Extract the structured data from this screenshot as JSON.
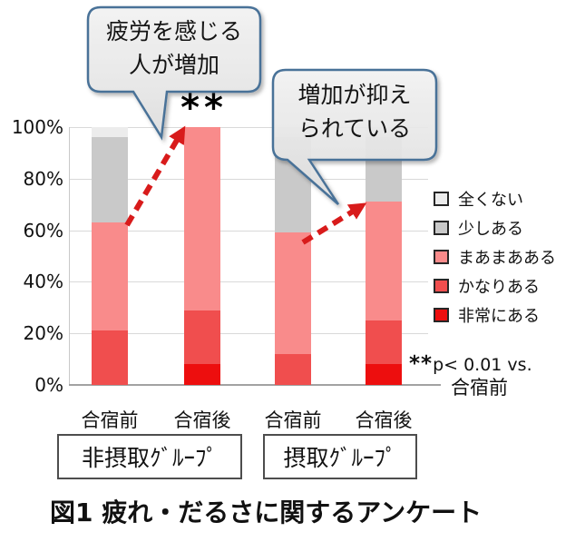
{
  "caption": "図1 疲れ・だるさに関するアンケート",
  "significance_marker": "**",
  "note": {
    "stars": "**",
    "text": "p< 0.01 vs.",
    "reference": "合宿前"
  },
  "callouts": [
    {
      "line1": "疲労を感じる",
      "line2": "人が増加"
    },
    {
      "line1": "増加が抑え",
      "line2": "られている"
    }
  ],
  "groups": [
    {
      "label": "非摂取ｸﾞﾙｰﾌﾟ"
    },
    {
      "label": "摂取ｸﾞﾙｰﾌﾟ"
    }
  ],
  "colors": {
    "none_at_all": "#ECECEC",
    "a_little": "#C9C9C9",
    "somewhat": "#F98B8B",
    "quite_a_bit": "#F04E4E",
    "very_much": "#ED0E0E",
    "arrow_red": "#D81B1B",
    "callout_border": "#4A7298",
    "callout_fill": "#EAEAEA",
    "gridline": "#D9D9D9"
  },
  "chart_data": {
    "type": "bar",
    "stacked": true,
    "percent": true,
    "title": "図1 疲れ・だるさに関するアンケート",
    "categories": [
      "合宿前",
      "合宿後",
      "合宿前",
      "合宿後"
    ],
    "category_groups": [
      "非摂取ｸﾞﾙｰﾌﾟ",
      "非摂取ｸﾞﾙｰﾌﾟ",
      "摂取ｸﾞﾙｰﾌﾟ",
      "摂取ｸﾞﾙｰﾌﾟ"
    ],
    "series": [
      {
        "name": "非常にある",
        "color": "#ED0E0E",
        "values": [
          0,
          8,
          0,
          8
        ]
      },
      {
        "name": "かなりある",
        "color": "#F04E4E",
        "values": [
          21,
          21,
          12,
          17
        ]
      },
      {
        "name": "まあまあある",
        "color": "#F98B8B",
        "values": [
          42,
          71,
          47,
          46
        ]
      },
      {
        "name": "少しある",
        "color": "#C9C9C9",
        "values": [
          33,
          0,
          37,
          25
        ]
      },
      {
        "name": "全くない",
        "color": "#ECECEC",
        "values": [
          4,
          0,
          4,
          4
        ]
      }
    ],
    "legend_order_top_to_bottom": [
      "全くない",
      "少しある",
      "まあまあある",
      "かなりある",
      "非常にある"
    ],
    "ylim": [
      0,
      100
    ],
    "yticks": [
      "0%",
      "20%",
      "40%",
      "60%",
      "80%",
      "100%"
    ],
    "grid": true,
    "legend_position": "right",
    "annotations": [
      "** p< 0.01 vs. 合宿前",
      "疲労を感じる人が増加",
      "増加が抑えられている"
    ]
  }
}
